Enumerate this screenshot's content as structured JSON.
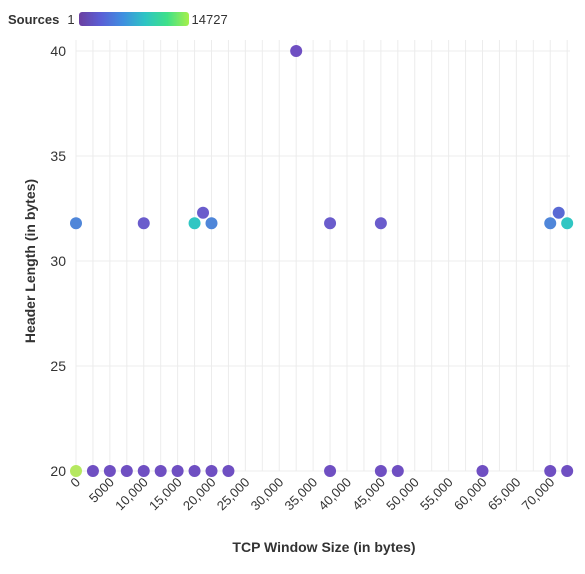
{
  "legend": {
    "title": "Sources",
    "min_label": "1",
    "max_label": "14727",
    "color_stops": [
      "#6b3fa0",
      "#5a5fd6",
      "#3f8fe0",
      "#2ec4c4",
      "#3ee08a",
      "#a6f04a"
    ]
  },
  "chart_data": {
    "type": "scatter",
    "xlabel": "TCP Window Size (in bytes)",
    "ylabel": "Header Length (in bytes)",
    "xlim": [
      0,
      70000
    ],
    "ylim": [
      20,
      40
    ],
    "x_ticks": [
      0,
      5000,
      10000,
      15000,
      20000,
      25000,
      30000,
      35000,
      40000,
      45000,
      50000,
      55000,
      60000,
      65000,
      70000
    ],
    "x_tick_labels": [
      "0",
      "5000",
      "10,000",
      "15,000",
      "20,000",
      "25,000",
      "30,000",
      "35,000",
      "40,000",
      "45,000",
      "50,000",
      "55,000",
      "60,000",
      "65,000",
      "70,000"
    ],
    "y_ticks": [
      20,
      25,
      30,
      35,
      40
    ],
    "y_tick_labels": [
      "20",
      "25",
      "30",
      "35",
      "40"
    ],
    "grid": true,
    "color_scale": {
      "min": 1,
      "max": 14727
    },
    "points": [
      {
        "x": 0,
        "y": 20,
        "color": "#b5e85f"
      },
      {
        "x": 2500,
        "y": 20,
        "color": "#6f4fc2"
      },
      {
        "x": 5000,
        "y": 20,
        "color": "#6f4fc2"
      },
      {
        "x": 7500,
        "y": 20,
        "color": "#6f4fc2"
      },
      {
        "x": 10000,
        "y": 20,
        "color": "#6f4fc2"
      },
      {
        "x": 12500,
        "y": 20,
        "color": "#6f4fc2"
      },
      {
        "x": 15000,
        "y": 20,
        "color": "#6f4fc2"
      },
      {
        "x": 17500,
        "y": 20,
        "color": "#6f4fc2"
      },
      {
        "x": 20000,
        "y": 20,
        "color": "#6f4fc2"
      },
      {
        "x": 22500,
        "y": 20,
        "color": "#6f4fc2"
      },
      {
        "x": 37500,
        "y": 20,
        "color": "#6f4fc2"
      },
      {
        "x": 45000,
        "y": 20,
        "color": "#6f4fc2"
      },
      {
        "x": 47500,
        "y": 20,
        "color": "#6f4fc2"
      },
      {
        "x": 60000,
        "y": 20,
        "color": "#6f4fc2"
      },
      {
        "x": 70000,
        "y": 20,
        "color": "#6f4fc2"
      },
      {
        "x": 72500,
        "y": 20,
        "color": "#6f4fc2"
      },
      {
        "x": 0,
        "y": 31.8,
        "color": "#4f86d9"
      },
      {
        "x": 10000,
        "y": 31.8,
        "color": "#6a5ccc"
      },
      {
        "x": 17500,
        "y": 31.8,
        "color": "#30c6c3"
      },
      {
        "x": 20000,
        "y": 31.8,
        "color": "#4f86d9"
      },
      {
        "x": 18750,
        "y": 32.3,
        "color": "#6a5ccc"
      },
      {
        "x": 32500,
        "y": 40,
        "color": "#6f4fc2"
      },
      {
        "x": 37500,
        "y": 31.8,
        "color": "#6a5ccc"
      },
      {
        "x": 45000,
        "y": 31.8,
        "color": "#6a5ccc"
      },
      {
        "x": 70000,
        "y": 31.8,
        "color": "#4f86d9"
      },
      {
        "x": 71250,
        "y": 32.3,
        "color": "#5a6ad4"
      },
      {
        "x": 72500,
        "y": 31.8,
        "color": "#30c6c3"
      }
    ]
  }
}
